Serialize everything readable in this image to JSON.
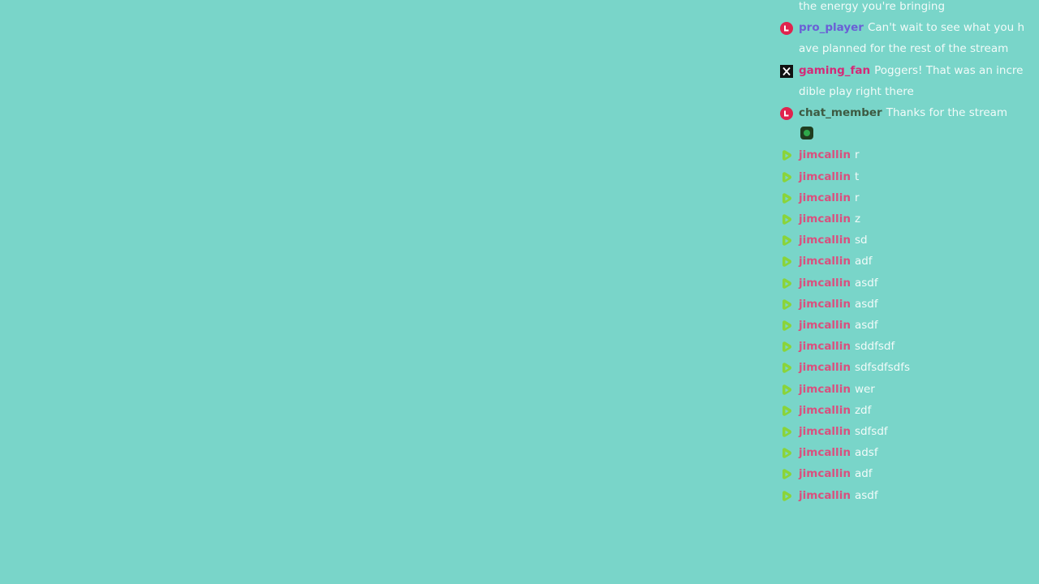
{
  "colors": {
    "background": "#79d5c9",
    "message_text": "#f2fbf9"
  },
  "chat": {
    "messages": [
      {
        "badge": "none",
        "user": "",
        "user_color": "",
        "text": "the energy you're bringing"
      },
      {
        "badge": "red-l-badge",
        "user": "pro_player",
        "user_color": "#6b5fd6",
        "text": "Can't wait to see what you have planned for the rest of the stream"
      },
      {
        "badge": "x-badge",
        "user": "gaming_fan",
        "user_color": "#d42a78",
        "text": "Poggers! That was an incredible play right there"
      },
      {
        "badge": "red-l-badge",
        "user": "chat_member",
        "user_color": "#3d5a42",
        "text": "Thanks for the stream",
        "emote": "green-creature-emote"
      },
      {
        "badge": "green-play-badge",
        "user": "jimcallin",
        "user_color": "#d9507e",
        "text": "r"
      },
      {
        "badge": "green-play-badge",
        "user": "jimcallin",
        "user_color": "#d9507e",
        "text": "t"
      },
      {
        "badge": "green-play-badge",
        "user": "jimcallin",
        "user_color": "#d9507e",
        "text": "r"
      },
      {
        "badge": "green-play-badge",
        "user": "jimcallin",
        "user_color": "#d9507e",
        "text": "z"
      },
      {
        "badge": "green-play-badge",
        "user": "jimcallin",
        "user_color": "#d9507e",
        "text": "sd"
      },
      {
        "badge": "green-play-badge",
        "user": "jimcallin",
        "user_color": "#d9507e",
        "text": "adf"
      },
      {
        "badge": "green-play-badge",
        "user": "jimcallin",
        "user_color": "#d9507e",
        "text": "asdf"
      },
      {
        "badge": "green-play-badge",
        "user": "jimcallin",
        "user_color": "#d9507e",
        "text": "asdf"
      },
      {
        "badge": "green-play-badge",
        "user": "jimcallin",
        "user_color": "#d9507e",
        "text": "asdf"
      },
      {
        "badge": "green-play-badge",
        "user": "jimcallin",
        "user_color": "#d9507e",
        "text": "sddfsdf"
      },
      {
        "badge": "green-play-badge",
        "user": "jimcallin",
        "user_color": "#d9507e",
        "text": "sdfsdfsdfs"
      },
      {
        "badge": "green-play-badge",
        "user": "jimcallin",
        "user_color": "#d9507e",
        "text": "wer"
      },
      {
        "badge": "green-play-badge",
        "user": "jimcallin",
        "user_color": "#d9507e",
        "text": "zdf"
      },
      {
        "badge": "green-play-badge",
        "user": "jimcallin",
        "user_color": "#d9507e",
        "text": "sdfsdf"
      },
      {
        "badge": "green-play-badge",
        "user": "jimcallin",
        "user_color": "#d9507e",
        "text": "adsf"
      },
      {
        "badge": "green-play-badge",
        "user": "jimcallin",
        "user_color": "#d9507e",
        "text": "adf"
      },
      {
        "badge": "green-play-badge",
        "user": "jimcallin",
        "user_color": "#d9507e",
        "text": "asdf"
      }
    ]
  }
}
